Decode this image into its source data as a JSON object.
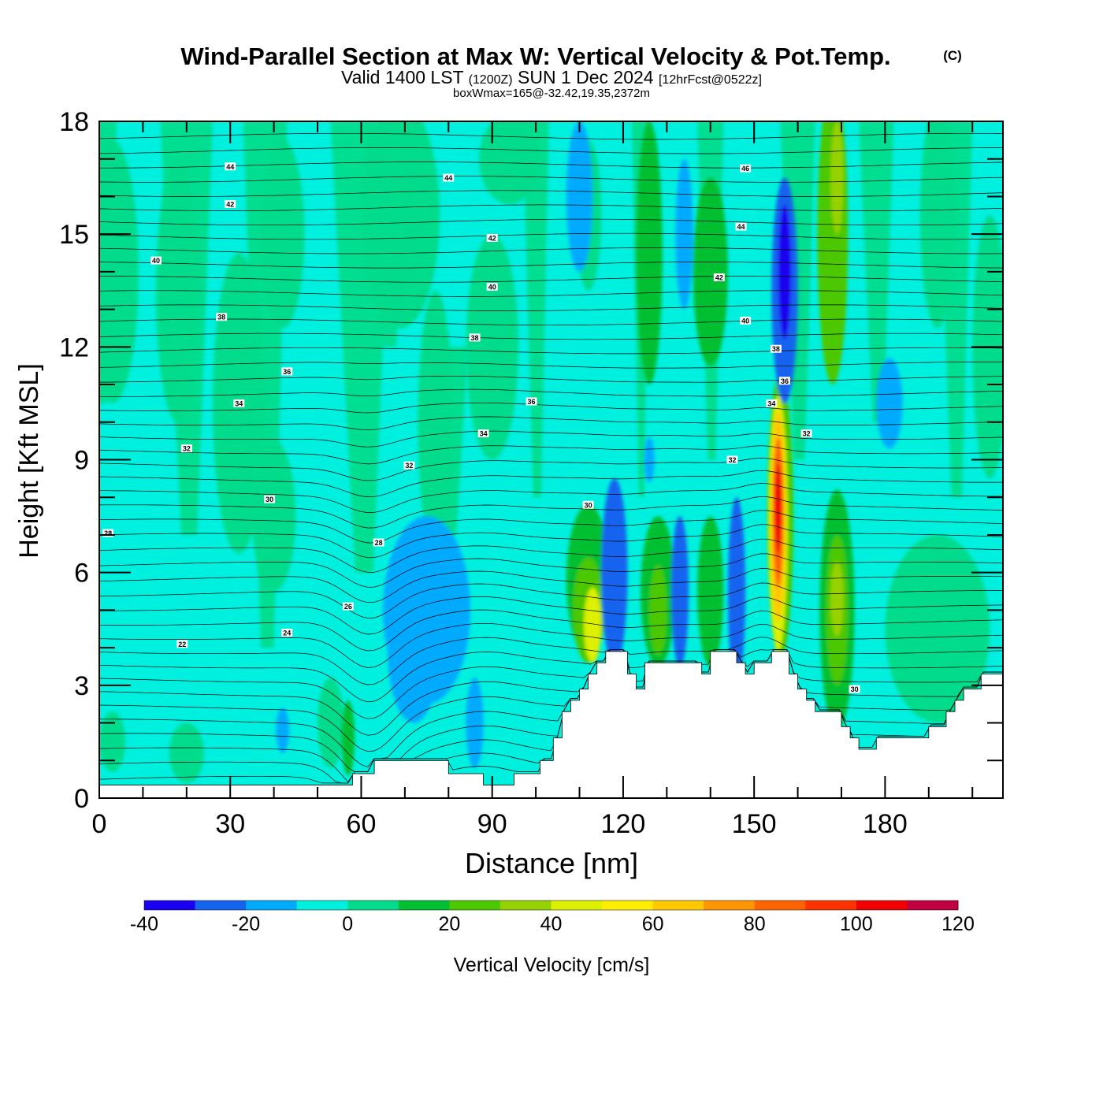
{
  "chart_data": {
    "type": "heatmap",
    "title": "Wind-Parallel Section at Max W: Vertical Velocity & Pot.Temp.",
    "title_suffix": "(C)",
    "subtitle": {
      "valid": "Valid 1400 LST",
      "utc": "(1200Z)",
      "date": "SUN 1 Dec 2024",
      "forecast": "[12hrFcst@0522z]"
    },
    "box_info": "boxWmax=165@-32.42,19.35,2372m",
    "xlabel": "Distance [nm]",
    "ylabel": "Height [Kft MSL]",
    "xlim": [
      0,
      207
    ],
    "ylim": [
      0,
      18
    ],
    "x_ticks": [
      "0",
      "30",
      "60",
      "90",
      "120",
      "150",
      "180"
    ],
    "x_tick_values": [
      0,
      30,
      60,
      90,
      120,
      150,
      180
    ],
    "y_ticks": [
      "0",
      "3",
      "6",
      "9",
      "12",
      "15",
      "18"
    ],
    "y_tick_values": [
      0,
      3,
      6,
      9,
      12,
      15,
      18
    ],
    "colorbar": {
      "label": "Vertical Velocity [cm/s]",
      "levels": [
        -40,
        -30,
        -20,
        -10,
        0,
        10,
        20,
        30,
        40,
        50,
        60,
        70,
        80,
        90,
        100,
        110,
        120
      ],
      "tick_labels": [
        "-40",
        "-20",
        "0",
        "20",
        "40",
        "60",
        "80",
        "100",
        "120"
      ],
      "colors": [
        "#1a00f0",
        "#1464f0",
        "#00aaff",
        "#00f0e0",
        "#00dc8c",
        "#00c032",
        "#4bc800",
        "#96d200",
        "#dcf000",
        "#ffee00",
        "#ffc800",
        "#ff9600",
        "#ff6400",
        "#ff3200",
        "#f00000",
        "#c00040"
      ]
    },
    "terrain": [
      [
        0,
        0.35
      ],
      [
        58,
        0.35
      ],
      [
        58,
        0.65
      ],
      [
        63,
        0.65
      ],
      [
        63,
        1.0
      ],
      [
        80,
        1.0
      ],
      [
        80,
        0.65
      ],
      [
        88,
        0.65
      ],
      [
        88,
        0.35
      ],
      [
        95,
        0.35
      ],
      [
        95,
        0.65
      ],
      [
        101,
        0.65
      ],
      [
        101,
        1.0
      ],
      [
        104,
        1.0
      ],
      [
        104,
        1.6
      ],
      [
        106,
        1.6
      ],
      [
        106,
        2.3
      ],
      [
        108,
        2.3
      ],
      [
        108,
        2.6
      ],
      [
        110,
        2.6
      ],
      [
        110,
        2.9
      ],
      [
        112,
        2.9
      ],
      [
        112,
        3.3
      ],
      [
        114,
        3.3
      ],
      [
        114,
        3.6
      ],
      [
        116,
        3.6
      ],
      [
        116,
        3.9
      ],
      [
        121,
        3.9
      ],
      [
        121,
        3.3
      ],
      [
        123,
        3.3
      ],
      [
        123,
        2.9
      ],
      [
        125,
        2.9
      ],
      [
        125,
        3.6
      ],
      [
        138,
        3.6
      ],
      [
        138,
        3.3
      ],
      [
        140,
        3.3
      ],
      [
        140,
        3.9
      ],
      [
        146,
        3.9
      ],
      [
        146,
        3.6
      ],
      [
        148,
        3.6
      ],
      [
        148,
        3.3
      ],
      [
        150,
        3.3
      ],
      [
        150,
        3.6
      ],
      [
        154,
        3.6
      ],
      [
        154,
        3.9
      ],
      [
        158,
        3.9
      ],
      [
        158,
        3.3
      ],
      [
        160,
        3.3
      ],
      [
        160,
        2.9
      ],
      [
        162,
        2.9
      ],
      [
        162,
        2.6
      ],
      [
        164,
        2.6
      ],
      [
        164,
        2.3
      ],
      [
        170,
        2.3
      ],
      [
        170,
        1.9
      ],
      [
        172,
        1.9
      ],
      [
        172,
        1.6
      ],
      [
        174,
        1.6
      ],
      [
        174,
        1.3
      ],
      [
        178,
        1.3
      ],
      [
        178,
        1.6
      ],
      [
        190,
        1.6
      ],
      [
        190,
        1.9
      ],
      [
        194,
        1.9
      ],
      [
        194,
        2.3
      ],
      [
        196,
        2.3
      ],
      [
        196,
        2.6
      ],
      [
        198,
        2.6
      ],
      [
        198,
        2.9
      ],
      [
        202,
        2.9
      ],
      [
        202,
        3.3
      ],
      [
        207,
        3.3
      ]
    ],
    "vv_blobs": [
      {
        "x": 3,
        "y": 14.0,
        "rx": 6,
        "ry": 3.5,
        "w": 5
      },
      {
        "x": 18,
        "y": 13.5,
        "rx": 5,
        "ry": 3.5,
        "w": 5
      },
      {
        "x": 42,
        "y": 15.0,
        "rx": 5,
        "ry": 2.5,
        "w": 5
      },
      {
        "x": 32,
        "y": 10.5,
        "rx": 6,
        "ry": 4,
        "w": 5
      },
      {
        "x": 40,
        "y": 7.5,
        "rx": 5,
        "ry": 2,
        "w": 5
      },
      {
        "x": 69,
        "y": 15.5,
        "rx": 9,
        "ry": 3,
        "w": 5
      },
      {
        "x": 77,
        "y": 10.0,
        "rx": 4,
        "ry": 3.5,
        "w": 5
      },
      {
        "x": 90,
        "y": 12.0,
        "rx": 6,
        "ry": 3,
        "w": 5
      },
      {
        "x": 94,
        "y": 17.0,
        "rx": 7,
        "ry": 1.2,
        "w": 5
      },
      {
        "x": 112,
        "y": 15.5,
        "rx": 3,
        "ry": 2,
        "w": 5
      },
      {
        "x": 126,
        "y": 14.5,
        "rx": 3,
        "ry": 3.5,
        "w": 15
      },
      {
        "x": 140,
        "y": 14.0,
        "rx": 4,
        "ry": 2.5,
        "w": 15
      },
      {
        "x": 168,
        "y": 15.0,
        "rx": 3.5,
        "ry": 4,
        "w": 25
      },
      {
        "x": 169,
        "y": 16.5,
        "rx": 1.5,
        "ry": 1.5,
        "w": 35
      },
      {
        "x": 192,
        "y": 15.5,
        "rx": 4,
        "ry": 3,
        "w": 5
      },
      {
        "x": 204,
        "y": 12.0,
        "rx": 4,
        "ry": 3.5,
        "w": 5
      },
      {
        "x": 53,
        "y": 2.0,
        "rx": 3,
        "ry": 1.2,
        "w": 5
      },
      {
        "x": 57,
        "y": 1.6,
        "rx": 1.5,
        "ry": 1.0,
        "w": 15
      },
      {
        "x": 112,
        "y": 5.8,
        "rx": 5,
        "ry": 2.0,
        "w": 15
      },
      {
        "x": 112,
        "y": 5.0,
        "rx": 3.5,
        "ry": 1.4,
        "w": 25
      },
      {
        "x": 113,
        "y": 4.6,
        "rx": 2,
        "ry": 1.0,
        "w": 45
      },
      {
        "x": 128,
        "y": 5.5,
        "rx": 4,
        "ry": 2.0,
        "w": 15
      },
      {
        "x": 128,
        "y": 5.0,
        "rx": 2,
        "ry": 1.2,
        "w": 25
      },
      {
        "x": 140,
        "y": 5.5,
        "rx": 3,
        "ry": 2.0,
        "w": 15
      },
      {
        "x": 156,
        "y": 7.5,
        "rx": 3,
        "ry": 3.8,
        "w": 25
      },
      {
        "x": 155.5,
        "y": 7.3,
        "rx": 2.2,
        "ry": 3.4,
        "w": 45
      },
      {
        "x": 155.5,
        "y": 7.5,
        "rx": 1.7,
        "ry": 2.8,
        "w": 65
      },
      {
        "x": 155.5,
        "y": 7.6,
        "rx": 1.2,
        "ry": 2.0,
        "w": 85
      },
      {
        "x": 155.5,
        "y": 7.7,
        "rx": 0.8,
        "ry": 1.2,
        "w": 105
      },
      {
        "x": 169,
        "y": 5.0,
        "rx": 4,
        "ry": 3.2,
        "w": 15
      },
      {
        "x": 169,
        "y": 5.0,
        "rx": 2.5,
        "ry": 2.0,
        "w": 25
      },
      {
        "x": 169,
        "y": 5.3,
        "rx": 1.5,
        "ry": 1.0,
        "w": 35
      },
      {
        "x": 192,
        "y": 4.5,
        "rx": 12,
        "ry": 2.5,
        "w": 5
      },
      {
        "x": 3,
        "y": 1.5,
        "rx": 3,
        "ry": 0.8,
        "w": 5
      },
      {
        "x": 20,
        "y": 1.2,
        "rx": 4,
        "ry": 0.8,
        "w": 5
      },
      {
        "x": 118,
        "y": 6.0,
        "rx": 3,
        "ry": 2.5,
        "w": -25
      },
      {
        "x": 133,
        "y": 5.5,
        "rx": 2,
        "ry": 2.0,
        "w": -25
      },
      {
        "x": 146,
        "y": 5.5,
        "rx": 2,
        "ry": 2.5,
        "w": -25
      },
      {
        "x": 157,
        "y": 13.5,
        "rx": 3,
        "ry": 3.0,
        "w": -25
      },
      {
        "x": 157,
        "y": 14.0,
        "rx": 1.5,
        "ry": 1.8,
        "w": -35
      },
      {
        "x": 110,
        "y": 16.0,
        "rx": 3,
        "ry": 2.0,
        "w": -15
      },
      {
        "x": 134,
        "y": 15.0,
        "rx": 2,
        "ry": 2.0,
        "w": -15
      },
      {
        "x": 75,
        "y": 5.0,
        "rx": 10,
        "ry": 2.5,
        "w": -15
      },
      {
        "x": 72,
        "y": 4.0,
        "rx": 6,
        "ry": 2.0,
        "w": -15
      },
      {
        "x": 42,
        "y": 1.8,
        "rx": 1.5,
        "ry": 0.6,
        "w": -15
      },
      {
        "x": 181,
        "y": 10.5,
        "rx": 3,
        "ry": 1.2,
        "w": -15
      },
      {
        "x": 126,
        "y": 9.0,
        "rx": 1.2,
        "ry": 0.6,
        "w": -15
      },
      {
        "x": 86,
        "y": 2.0,
        "rx": 2,
        "ry": 1.2,
        "w": -15
      }
    ],
    "pot_temp_label_values": [
      44,
      42,
      40,
      38,
      36,
      34,
      32,
      30,
      28,
      26,
      24,
      22
    ],
    "contour_labels": [
      {
        "text": "44",
        "x": 30,
        "y": 16.8
      },
      {
        "text": "44",
        "x": 80,
        "y": 16.5
      },
      {
        "text": "46",
        "x": 148,
        "y": 16.75
      },
      {
        "text": "42",
        "x": 30,
        "y": 15.8
      },
      {
        "text": "42",
        "x": 90,
        "y": 14.9
      },
      {
        "text": "44",
        "x": 147,
        "y": 15.2
      },
      {
        "text": "40",
        "x": 13,
        "y": 14.3
      },
      {
        "text": "40",
        "x": 90,
        "y": 13.6
      },
      {
        "text": "42",
        "x": 142,
        "y": 13.85
      },
      {
        "text": "38",
        "x": 28,
        "y": 12.8
      },
      {
        "text": "38",
        "x": 86,
        "y": 12.25
      },
      {
        "text": "40",
        "x": 148,
        "y": 12.7
      },
      {
        "text": "36",
        "x": 43,
        "y": 11.35
      },
      {
        "text": "36",
        "x": 99,
        "y": 10.55
      },
      {
        "text": "38",
        "x": 155,
        "y": 11.95
      },
      {
        "text": "34",
        "x": 32,
        "y": 10.5
      },
      {
        "text": "34",
        "x": 88,
        "y": 9.7
      },
      {
        "text": "36",
        "x": 157,
        "y": 11.1
      },
      {
        "text": "34",
        "x": 154,
        "y": 10.5
      },
      {
        "text": "32",
        "x": 20,
        "y": 9.3
      },
      {
        "text": "32",
        "x": 71,
        "y": 8.85
      },
      {
        "text": "32",
        "x": 145,
        "y": 9.0
      },
      {
        "text": "32",
        "x": 162,
        "y": 9.7
      },
      {
        "text": "30",
        "x": 39,
        "y": 7.95
      },
      {
        "text": "30",
        "x": 112,
        "y": 7.8
      },
      {
        "text": "28",
        "x": 2,
        "y": 7.05
      },
      {
        "text": "28",
        "x": 64,
        "y": 6.8
      },
      {
        "text": "26",
        "x": 57,
        "y": 5.1
      },
      {
        "text": "24",
        "x": 43,
        "y": 4.4
      },
      {
        "text": "22",
        "x": 19,
        "y": 4.1
      },
      {
        "text": "30",
        "x": 173,
        "y": 2.9
      }
    ]
  }
}
